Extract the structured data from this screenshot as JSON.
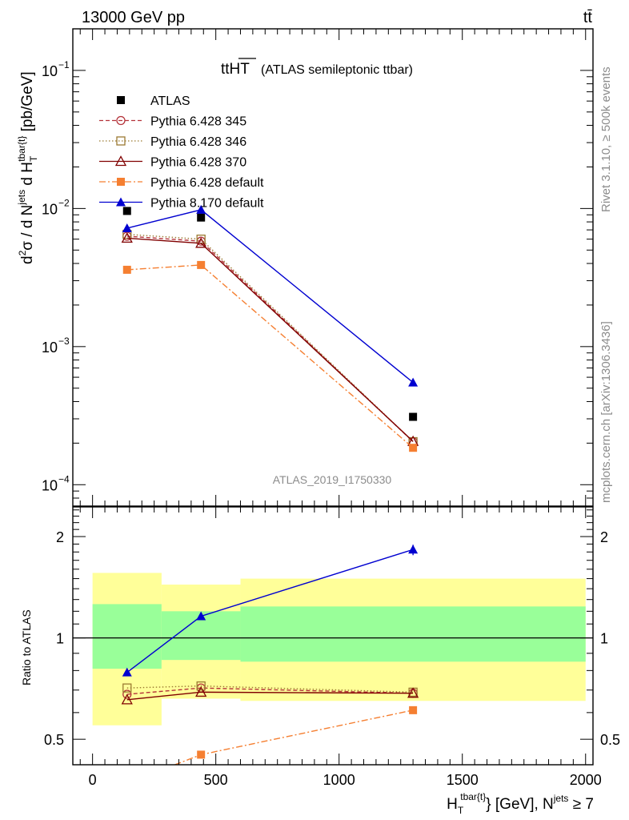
{
  "header": {
    "left": "13000 GeV pp",
    "right": "tt̄"
  },
  "side_labels": {
    "rivet": "Rivet 3.1.10, ≥ 500k events",
    "mcplots": "mcplots.cern.ch [arXiv:1306.3436]"
  },
  "chart_data": [
    {
      "type": "line",
      "title": "ttHT",
      "subtitle": "(ATLAS semileptonic ttbar)",
      "watermark": "ATLAS_2019_I1750330",
      "ylabel": "d²σ / d N^jets d H_T^tbar{t} [pb/GeV]",
      "yscale": "log",
      "ylim": [
        7e-05,
        0.2
      ],
      "xlim": [
        -80,
        2030
      ],
      "yticks": [
        {
          "v": 0.1,
          "label": "10",
          "exp": "−1"
        },
        {
          "v": 0.01,
          "label": "10",
          "exp": "−2"
        },
        {
          "v": 0.001,
          "label": "10",
          "exp": "−3"
        },
        {
          "v": 0.0001,
          "label": "10",
          "exp": "−4"
        }
      ],
      "legend_position": "top-left",
      "series": [
        {
          "name": "ATLAS",
          "color": "#000000",
          "marker": "square-filled",
          "dash": "none",
          "x": [
            140,
            440,
            1300
          ],
          "y": [
            0.0096,
            0.0086,
            0.00031
          ]
        },
        {
          "name": "Pythia 6.428 345",
          "color": "#b4333a",
          "marker": "circle-open",
          "dash": "dashed",
          "x": [
            140,
            440,
            1300
          ],
          "y": [
            0.0063,
            0.0058,
            0.000205
          ]
        },
        {
          "name": "Pythia 6.428 346",
          "color": "#9b7a32",
          "marker": "square-open",
          "dash": "dotted",
          "x": [
            140,
            440,
            1300
          ],
          "y": [
            0.0065,
            0.006,
            0.000205
          ]
        },
        {
          "name": "Pythia 6.428 370",
          "color": "#800000",
          "marker": "triangle-open",
          "dash": "solid",
          "x": [
            140,
            440,
            1300
          ],
          "y": [
            0.0061,
            0.0056,
            0.000206
          ]
        },
        {
          "name": "Pythia 6.428 default",
          "color": "#f57f31",
          "marker": "square-filled",
          "dash": "dashdot",
          "x": [
            140,
            440,
            1300
          ],
          "y": [
            0.0036,
            0.0039,
            0.000185
          ]
        },
        {
          "name": "Pythia 8.170 default",
          "color": "#0000d0",
          "marker": "triangle-filled",
          "dash": "solid",
          "x": [
            140,
            440,
            1300
          ],
          "y": [
            0.0072,
            0.0098,
            0.00055
          ]
        }
      ]
    },
    {
      "type": "line",
      "ylabel": "Ratio to ATLAS",
      "xlabel": "H_T^tbar{t} [GeV], N^jets ≥ 7",
      "yscale": "log",
      "ylim": [
        0.42,
        2.45
      ],
      "xlim": [
        -80,
        2030
      ],
      "xticks": [
        {
          "v": 0,
          "label": "0"
        },
        {
          "v": 500,
          "label": "500"
        },
        {
          "v": 1000,
          "label": "1000"
        },
        {
          "v": 1500,
          "label": "1500"
        },
        {
          "v": 2000,
          "label": "2000"
        }
      ],
      "yticks": [
        {
          "v": 0.5,
          "label": "0.5"
        },
        {
          "v": 1,
          "label": "1"
        },
        {
          "v": 2,
          "label": "2"
        }
      ],
      "bands": [
        {
          "x0": 0,
          "x1": 280,
          "stat_lo": 0.81,
          "stat_hi": 1.26,
          "tot_lo": 0.55,
          "tot_hi": 1.56
        },
        {
          "x0": 280,
          "x1": 600,
          "stat_lo": 0.86,
          "stat_hi": 1.2,
          "tot_lo": 0.66,
          "tot_hi": 1.44
        },
        {
          "x0": 600,
          "x1": 2000,
          "stat_lo": 0.85,
          "stat_hi": 1.24,
          "tot_lo": 0.65,
          "tot_hi": 1.5
        }
      ],
      "band_colors": {
        "stat": "#99ff99",
        "total": "#ffff99"
      },
      "series": [
        {
          "name": "Pythia 6.428 345",
          "color": "#b4333a",
          "marker": "circle-open",
          "dash": "dashed",
          "x": [
            140,
            440,
            1300
          ],
          "y": [
            0.68,
            0.71,
            0.685
          ]
        },
        {
          "name": "Pythia 6.428 346",
          "color": "#9b7a32",
          "marker": "square-open",
          "dash": "dotted",
          "x": [
            140,
            440,
            1300
          ],
          "y": [
            0.71,
            0.72,
            0.69
          ]
        },
        {
          "name": "Pythia 6.428 370",
          "color": "#800000",
          "marker": "triangle-open",
          "dash": "solid",
          "x": [
            140,
            440,
            1300
          ],
          "y": [
            0.655,
            0.69,
            0.685
          ]
        },
        {
          "name": "Pythia 6.428 default",
          "color": "#f57f31",
          "marker": "square-filled",
          "dash": "dashdot",
          "x": [
            140,
            440,
            1300
          ],
          "y": [
            0.37,
            0.45,
            0.61
          ]
        },
        {
          "name": "Pythia 8.170 default",
          "color": "#0000d0",
          "marker": "triangle-filled",
          "dash": "solid",
          "x": [
            140,
            440,
            1300
          ],
          "y": [
            0.79,
            1.16,
            1.83
          ]
        }
      ]
    }
  ]
}
